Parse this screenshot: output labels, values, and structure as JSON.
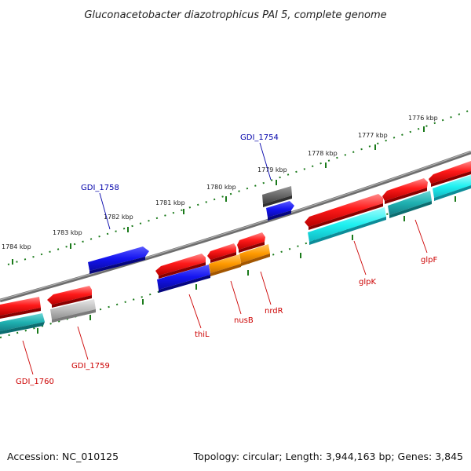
{
  "title": "Gluconacetobacter diazotrophicus PAI 5, complete genome",
  "accession": "Accession: NC_010125",
  "summary": "Topology: circular; Length: 3,944,163 bp; Genes: 3,845",
  "colors": {
    "backbone": "#8a8a8a",
    "ticks": "#1a7a1a",
    "red": "#ee1111",
    "cyan": "#22dddd",
    "teal": "#22aaaa",
    "blue": "#1515dd",
    "orange": "#ff9900",
    "grey": "#b8b8b8",
    "darkgrey": "#666666",
    "label_red": "#cc0000",
    "label_blue": "#0000aa"
  },
  "scale_labels": [
    "1776 kbp",
    "1777 kbp",
    "1778 kbp",
    "1779 kbp",
    "1780 kbp",
    "1781 kbp",
    "1782 kbp",
    "1783 kbp",
    "1784 kbp"
  ],
  "gene_labels": [
    "GDI_1754",
    "GDI_1758",
    "thiL",
    "nusB",
    "nrdR",
    "glpK",
    "glpF",
    "GDI_1759",
    "GDI_1760"
  ]
}
